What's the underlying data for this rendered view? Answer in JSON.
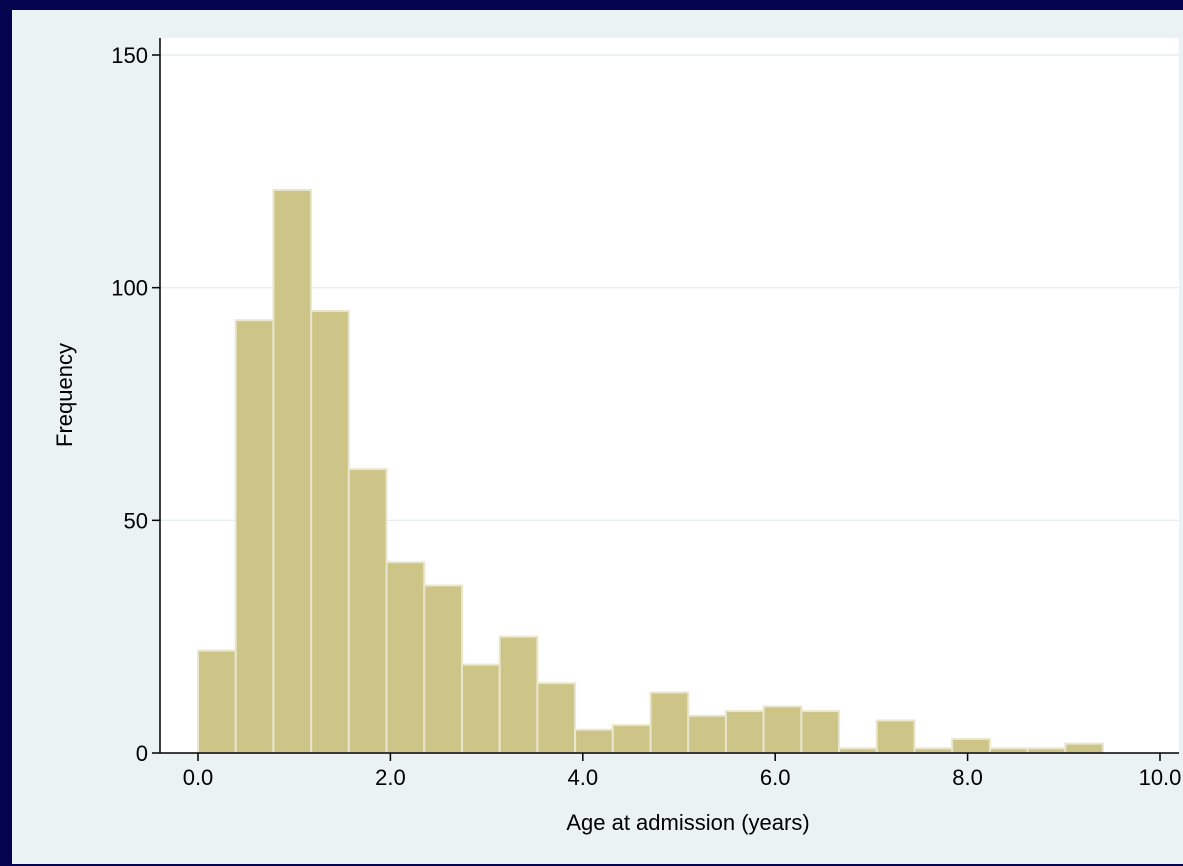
{
  "colors": {
    "border": "#03034f",
    "outer_background": "#eaf2f3",
    "plot_background": "#ffffff",
    "bar_fill": "#cdc487",
    "bar_stroke": "#e9e6cd",
    "grid": "#e6eef0",
    "axis": "#000000"
  },
  "chart_data": {
    "type": "bar",
    "title": "",
    "xlabel": "Age at admission (years)",
    "ylabel": "Frequency",
    "xlim": [
      -0.9,
      10.0
    ],
    "ylim": [
      0,
      150
    ],
    "grid": true,
    "legend": "none",
    "bin_width": 0.392,
    "bins": [
      {
        "x0": 0.0,
        "x1": 0.392,
        "value": 22
      },
      {
        "x0": 0.392,
        "x1": 0.784,
        "value": 93
      },
      {
        "x0": 0.784,
        "x1": 1.176,
        "value": 121
      },
      {
        "x0": 1.176,
        "x1": 1.568,
        "value": 95
      },
      {
        "x0": 1.568,
        "x1": 1.96,
        "value": 61
      },
      {
        "x0": 1.96,
        "x1": 2.352,
        "value": 41
      },
      {
        "x0": 2.352,
        "x1": 2.744,
        "value": 36
      },
      {
        "x0": 2.744,
        "x1": 3.136,
        "value": 19
      },
      {
        "x0": 3.136,
        "x1": 3.528,
        "value": 25
      },
      {
        "x0": 3.528,
        "x1": 3.92,
        "value": 15
      },
      {
        "x0": 3.92,
        "x1": 4.312,
        "value": 5
      },
      {
        "x0": 4.312,
        "x1": 4.704,
        "value": 6
      },
      {
        "x0": 4.704,
        "x1": 5.096,
        "value": 13
      },
      {
        "x0": 5.096,
        "x1": 5.488,
        "value": 8
      },
      {
        "x0": 5.488,
        "x1": 5.88,
        "value": 9
      },
      {
        "x0": 5.88,
        "x1": 6.272,
        "value": 10
      },
      {
        "x0": 6.272,
        "x1": 6.664,
        "value": 9
      },
      {
        "x0": 6.664,
        "x1": 7.056,
        "value": 1
      },
      {
        "x0": 7.056,
        "x1": 7.448,
        "value": 7
      },
      {
        "x0": 7.448,
        "x1": 7.84,
        "value": 1
      },
      {
        "x0": 7.84,
        "x1": 8.232,
        "value": 3
      },
      {
        "x0": 8.232,
        "x1": 8.624,
        "value": 1
      },
      {
        "x0": 8.624,
        "x1": 9.016,
        "value": 1
      },
      {
        "x0": 9.016,
        "x1": 9.408,
        "value": 2
      }
    ],
    "x_ticks": [
      {
        "value": 0,
        "label": "0.0"
      },
      {
        "value": 2,
        "label": "2.0"
      },
      {
        "value": 4,
        "label": "4.0"
      },
      {
        "value": 6,
        "label": "6.0"
      },
      {
        "value": 8,
        "label": "8.0"
      },
      {
        "value": 10,
        "label": "10.0"
      }
    ],
    "y_ticks": [
      {
        "value": 0,
        "label": "0"
      },
      {
        "value": 50,
        "label": "50"
      },
      {
        "value": 100,
        "label": "100"
      },
      {
        "value": 150,
        "label": "150"
      }
    ]
  }
}
